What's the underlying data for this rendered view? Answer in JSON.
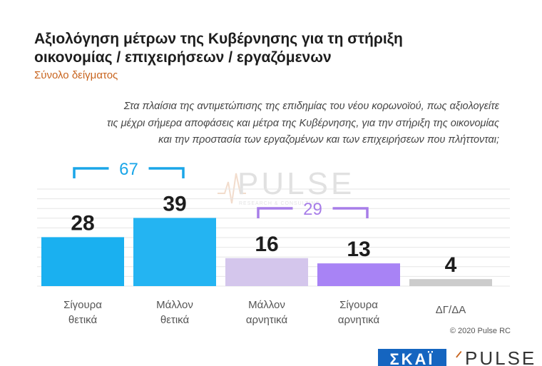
{
  "title_line1": "Αξιολόγηση μέτρων της Κυβέρνησης για τη στήριξη",
  "title_line2": "οικονομίας / επιχειρήσεων / εργαζόμενων",
  "subtitle": "Σύνολο δείγματος",
  "question_line1": "Στα πλαίσια της αντιμετώπισης της επιδημίας του νέου κορωνοϊού, πως αξιολογείτε",
  "question_line2": "τις μέχρι σήμερα αποφάσεις και μέτρα της Κυβέρνησης, για την στήριξη της οικονομίας",
  "question_line3": "και την προστασία των εργαζομένων και των επιχειρήσεων που πλήττονται;",
  "watermark": "PULSE",
  "watermark_sub": "RESEARCH & CONSULTING",
  "copyright": "© 2020 Pulse RC",
  "footer_skai": "ΣΚΑΪ",
  "footer_pulse": "PULSE",
  "colors": {
    "positive_strong": "#1ab0f0",
    "positive": "#24b4f2",
    "negative": "#d4c6ec",
    "negative_strong": "#a883f5",
    "dk": "#cccccc",
    "positive_bracket": "#1aa6e8",
    "negative_bracket": "#a77de8"
  },
  "chart_data": {
    "type": "bar",
    "categories": [
      [
        "Σίγουρα",
        "θετικά"
      ],
      [
        "Μάλλον",
        "θετικά"
      ],
      [
        "Μάλλον",
        "αρνητικά"
      ],
      [
        "Σίγουρα",
        "αρνητικά"
      ],
      [
        "ΔΓ/ΔΑ"
      ]
    ],
    "values": [
      28,
      39,
      16,
      13,
      4
    ],
    "bar_colors": [
      "#1ab0f0",
      "#24b4f2",
      "#d4c6ec",
      "#a883f5",
      "#cccccc"
    ],
    "groups": [
      {
        "label": "67",
        "from": 0,
        "to": 1,
        "color": "#1aa6e8"
      },
      {
        "label": "29",
        "from": 2,
        "to": 3,
        "color": "#a77de8"
      }
    ],
    "ylim": [
      0,
      40
    ],
    "grid": true,
    "legend": "none"
  }
}
